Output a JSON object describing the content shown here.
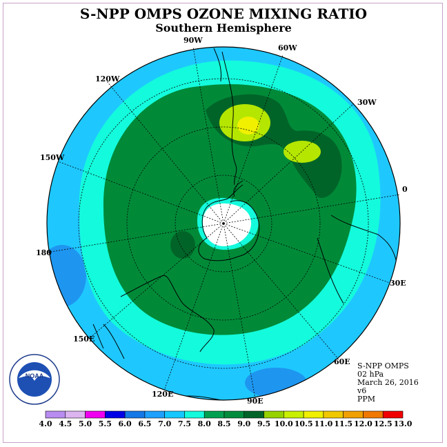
{
  "title": "S-NPP OMPS OZONE MIXING RATIO",
  "subtitle": "Southern Hemisphere",
  "logo_text": "NOAA",
  "logo_ring_text": "NATIONAL OCEANIC AND ATMOSPHERIC ADMINISTRATION · U.S. DEPARTMENT OF COMMERCE",
  "longitude_labels": {
    "w90": "90W",
    "w60": "60W",
    "w30": "30W",
    "e0": "0",
    "w120": "120W",
    "w150": "150W",
    "w180": "180",
    "e30": "30E",
    "e60": "60E",
    "e90": "90E",
    "e120": "120E",
    "e150": "150E"
  },
  "info": {
    "instrument": "S-NPP OMPS",
    "level": "02 hPa",
    "date": "March 26, 2016",
    "version": "v6",
    "units": "PPM"
  },
  "colorbar": {
    "ticks": [
      "4.0",
      "4.5",
      "5.0",
      "5.5",
      "6.0",
      "6.5",
      "7.0",
      "7.5",
      "8.0",
      "8.5",
      "9.0",
      "9.5",
      "10.0",
      "10.5",
      "11.0",
      "11.5",
      "12.0",
      "12.5",
      "13.0"
    ],
    "colors": [
      "#b88cf0",
      "#dcb4f0",
      "#f000f0",
      "#0000e6",
      "#1478e6",
      "#1ea0ff",
      "#14c8ff",
      "#14fadc",
      "#00a050",
      "#008c3c",
      "#006428",
      "#96d200",
      "#c8f000",
      "#f0f000",
      "#f0c800",
      "#f0a000",
      "#f07800",
      "#f00000",
      "#8c5a46"
    ]
  },
  "colors": {
    "outer": "#1ec8ff",
    "ring_mid": "#14fadc",
    "core": "#008a38",
    "dark": "#006428",
    "high": "#b4e600",
    "peak": "#f0f000",
    "low_blue": "#1e96f0",
    "polar": "#ffffff"
  }
}
